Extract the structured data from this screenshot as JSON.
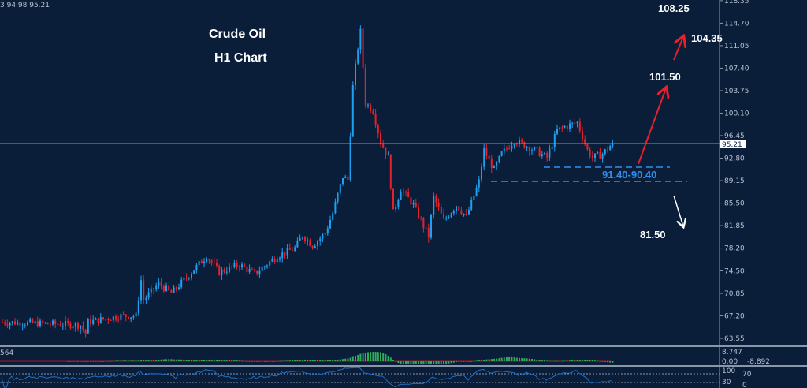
{
  "header": {
    "ohlc_text": "3 94.98 95.21"
  },
  "chart_data": {
    "type": "candlestick",
    "title": "Crude Oil",
    "subtitle": "H1 Chart",
    "ylim": [
      63.55,
      118.35
    ],
    "y_ticks": [
      "118.35",
      "114.70",
      "111.05",
      "107.40",
      "103.75",
      "100.10",
      "96.45",
      "92.80",
      "89.15",
      "85.50",
      "81.85",
      "78.20",
      "74.50",
      "70.85",
      "67.20",
      "63.55"
    ],
    "current_price": "95.21",
    "price_path": [
      {
        "bar": 0,
        "price": 66.2
      },
      {
        "bar": 31,
        "price": 65.7
      },
      {
        "bar": 33,
        "price": 64.4
      },
      {
        "bar": 34,
        "price": 66.2
      },
      {
        "bar": 47,
        "price": 67.2
      },
      {
        "bar": 53,
        "price": 67.2
      },
      {
        "bar": 55,
        "price": 73.0
      },
      {
        "bar": 56,
        "price": 69.8
      },
      {
        "bar": 62,
        "price": 72.4
      },
      {
        "bar": 67,
        "price": 70.85
      },
      {
        "bar": 81,
        "price": 76.9
      },
      {
        "bar": 86,
        "price": 74.3
      },
      {
        "bar": 94,
        "price": 75.5
      },
      {
        "bar": 100,
        "price": 74.0
      },
      {
        "bar": 109,
        "price": 76.9
      },
      {
        "bar": 116,
        "price": 78.2
      },
      {
        "bar": 119,
        "price": 80.3
      },
      {
        "bar": 123,
        "price": 78.6
      },
      {
        "bar": 128,
        "price": 80.6
      },
      {
        "bar": 131,
        "price": 83.9
      },
      {
        "bar": 135,
        "price": 89.8
      },
      {
        "bar": 137,
        "price": 89.3
      },
      {
        "bar": 139,
        "price": 104.4
      },
      {
        "bar": 141,
        "price": 110.8
      },
      {
        "bar": 142,
        "price": 113.3
      },
      {
        "bar": 144,
        "price": 101.8
      },
      {
        "bar": 147,
        "price": 100.5
      },
      {
        "bar": 150,
        "price": 95.4
      },
      {
        "bar": 153,
        "price": 92.9
      },
      {
        "bar": 155,
        "price": 83.9
      },
      {
        "bar": 158,
        "price": 87.8
      },
      {
        "bar": 163,
        "price": 85.2
      },
      {
        "bar": 169,
        "price": 80.1
      },
      {
        "bar": 171,
        "price": 86.5
      },
      {
        "bar": 175,
        "price": 82.6
      },
      {
        "bar": 180,
        "price": 85.2
      },
      {
        "bar": 184,
        "price": 83.3
      },
      {
        "bar": 189,
        "price": 89.0
      },
      {
        "bar": 191,
        "price": 94.1
      },
      {
        "bar": 195,
        "price": 90.9
      },
      {
        "bar": 198,
        "price": 93.5
      },
      {
        "bar": 203,
        "price": 95.7
      },
      {
        "bar": 211,
        "price": 94.1
      },
      {
        "bar": 216,
        "price": 92.9
      },
      {
        "bar": 220,
        "price": 97.3
      },
      {
        "bar": 223,
        "price": 97.9
      },
      {
        "bar": 228,
        "price": 98.6
      },
      {
        "bar": 232,
        "price": 94.1
      },
      {
        "bar": 234,
        "price": 92.9
      },
      {
        "bar": 238,
        "price": 93.5
      },
      {
        "bar": 242,
        "price": 95.21
      }
    ],
    "support_zone": {
      "label": "91.40-90.40",
      "levels": [
        91.4,
        90.4
      ]
    },
    "targets_up": [
      {
        "label": "101.50",
        "price": 101.5
      },
      {
        "label": "104.35",
        "price": 104.35
      },
      {
        "label": "108.25",
        "price": 108.25
      }
    ],
    "targets_down": [
      {
        "label": "81.50",
        "price": 81.5
      }
    ],
    "colors": {
      "background": "#0a1e3a",
      "up": "#1ea0f0",
      "down": "#e8202a",
      "support": "#2f8ff0",
      "arrow_up": "#e8202a",
      "arrow_down": "#ffffff"
    },
    "macd_panel": {
      "label": "564",
      "y_ticks": [
        "8.747",
        "0.00",
        "-8.892"
      ]
    },
    "rsi_panel": {
      "y_ticks": [
        "100",
        "70",
        "30",
        "0"
      ]
    }
  }
}
